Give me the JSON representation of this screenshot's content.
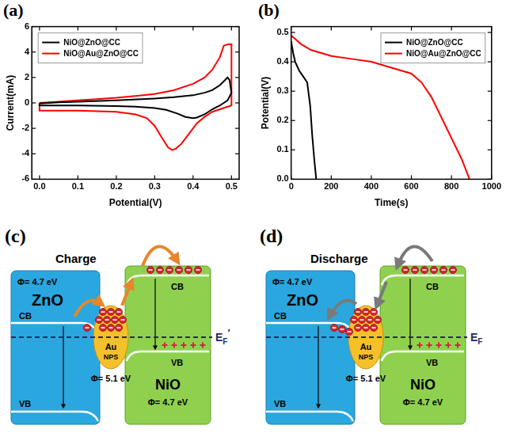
{
  "chart_data": [
    {
      "panel": "(a)",
      "type": "line",
      "x_label": "Potential(V)",
      "y_label": "Current(mA)",
      "xlim": [
        -0.02,
        0.52
      ],
      "xticks": [
        {
          "value": 0,
          "label": "0.0"
        },
        0.1,
        0.2,
        0.3,
        0.4,
        0.5
      ],
      "ylim": [
        -6,
        6
      ],
      "yticks": [
        -6,
        -4,
        -2,
        0,
        2,
        4,
        6
      ],
      "grid": false,
      "legend": "upper left",
      "series": [
        {
          "name": "NiO@ZnO@CC",
          "color": "#000000",
          "x": [
            0,
            0.05,
            0.1,
            0.2,
            0.3,
            0.35,
            0.4,
            0.43,
            0.45,
            0.47,
            0.48,
            0.49,
            0.495,
            0.5,
            0.49,
            0.47,
            0.45,
            0.43,
            0.41,
            0.4,
            0.38,
            0.36,
            0.33,
            0.3,
            0.25,
            0.2,
            0.1,
            0,
            0
          ],
          "values": [
            -0.05,
            0.05,
            0.1,
            0.2,
            0.35,
            0.45,
            0.6,
            0.8,
            1.0,
            1.4,
            1.7,
            2.0,
            1.8,
            0.8,
            0.2,
            -0.2,
            -0.5,
            -0.9,
            -1.15,
            -1.2,
            -1.1,
            -0.85,
            -0.55,
            -0.4,
            -0.3,
            -0.25,
            -0.2,
            -0.2,
            -0.05
          ]
        },
        {
          "name": "NiO@Au@ZnO@CC",
          "color": "#ff0000",
          "x": [
            0,
            0.05,
            0.1,
            0.15,
            0.2,
            0.25,
            0.3,
            0.35,
            0.4,
            0.43,
            0.45,
            0.47,
            0.48,
            0.49,
            0.5,
            0.5,
            0.49,
            0.47,
            0.45,
            0.43,
            0.41,
            0.39,
            0.37,
            0.355,
            0.345,
            0.335,
            0.32,
            0.3,
            0.28,
            0.25,
            0.2,
            0.15,
            0.1,
            0.05,
            0,
            0
          ],
          "values": [
            0.0,
            0.1,
            0.2,
            0.3,
            0.4,
            0.55,
            0.7,
            1.0,
            1.5,
            2.0,
            2.6,
            3.6,
            4.5,
            4.6,
            4.6,
            -0.2,
            -0.3,
            -0.5,
            -0.7,
            -1.1,
            -1.6,
            -2.4,
            -3.2,
            -3.6,
            -3.7,
            -3.5,
            -2.8,
            -1.8,
            -1.2,
            -0.9,
            -0.7,
            -0.65,
            -0.6,
            -0.6,
            -0.6,
            0.0
          ]
        }
      ]
    },
    {
      "panel": "(b)",
      "type": "line",
      "x_label": "Time(s)",
      "y_label": "Potential(V)",
      "xlim": [
        0,
        1000
      ],
      "xticks": [
        0,
        200,
        400,
        600,
        800,
        1000
      ],
      "ylim": [
        0,
        0.52
      ],
      "yticks": [
        {
          "value": 0,
          "label": "0.0"
        },
        0.1,
        0.2,
        0.3,
        0.4,
        0.5
      ],
      "grid": false,
      "legend": "upper right",
      "series": [
        {
          "name": "NiO@ZnO@CC",
          "color": "#000000",
          "x": [
            0,
            10,
            20,
            40,
            60,
            80,
            95,
            105,
            115,
            125
          ],
          "values": [
            0.47,
            0.43,
            0.4,
            0.37,
            0.35,
            0.33,
            0.25,
            0.15,
            0.07,
            0.0
          ]
        },
        {
          "name": "NiO@Au@ZnO@CC",
          "color": "#ff0000",
          "x": [
            0,
            50,
            100,
            200,
            300,
            400,
            500,
            600,
            650,
            700,
            750,
            800,
            850,
            890
          ],
          "values": [
            0.49,
            0.46,
            0.44,
            0.42,
            0.41,
            0.4,
            0.38,
            0.36,
            0.33,
            0.28,
            0.21,
            0.14,
            0.07,
            0.0
          ]
        }
      ]
    }
  ],
  "diagrams": [
    {
      "panel": "(c)",
      "title": "Charge",
      "left": {
        "name": "ZnO",
        "work_function": "Φ= 4.7 eV",
        "cb": "CB",
        "vb": "VB"
      },
      "middle": {
        "name": "Au",
        "sub": "NPS",
        "work_function": "Φ= 5.1 eV"
      },
      "right": {
        "name": "NiO",
        "work_function": "Φ= 4.7 eV",
        "cb": "CB",
        "vb": "VB"
      },
      "fermi_level": {
        "symbol": "E",
        "subscript": "F",
        "prime": "′"
      }
    },
    {
      "panel": "(d)",
      "title": "Discharge",
      "left": {
        "name": "ZnO",
        "work_function": "Φ= 4.7 eV",
        "cb": "CB",
        "vb": "VB"
      },
      "middle": {
        "name": "Au",
        "sub": "NPS",
        "work_function": "Φ= 5.1 eV"
      },
      "right": {
        "name": "NiO",
        "work_function": "Φ= 4.7 eV",
        "cb": "CB",
        "vb": "VB"
      },
      "fermi_level": {
        "symbol": "E",
        "subscript": "F"
      }
    }
  ]
}
